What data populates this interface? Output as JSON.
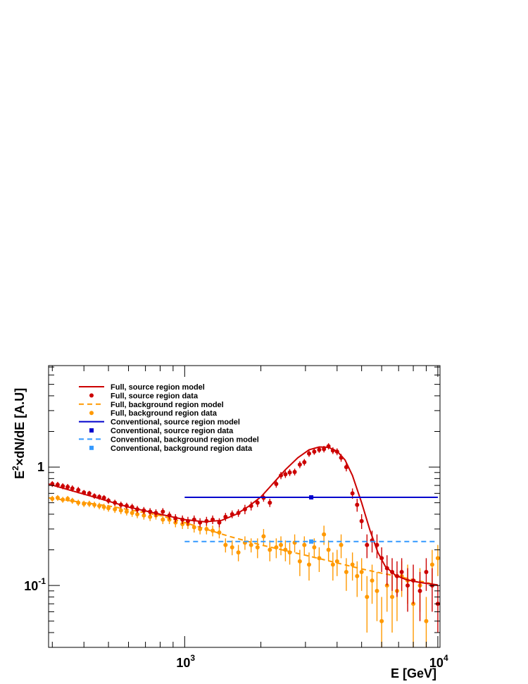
{
  "chart_data": {
    "type": "line",
    "title": "",
    "xlabel": "E [GeV]",
    "ylabel_parts": {
      "e": "E",
      "sup": "2",
      "rest": "×dN/dE [A.U]"
    },
    "xscale": "log",
    "yscale": "log",
    "xlim": [
      290,
      10200
    ],
    "ylim": [
      0.03,
      7.2
    ],
    "grid": false,
    "legend_position": "top-left",
    "x_ticks": [
      {
        "value": 1000,
        "base": "10",
        "exp": "3"
      },
      {
        "value": 10000,
        "base": "10",
        "exp": "4"
      }
    ],
    "y_ticks": [
      {
        "value": 1,
        "label": "1"
      },
      {
        "value": 0.1,
        "base": "10",
        "exp": "-1"
      }
    ],
    "colors": {
      "full_source": "#cc0000",
      "full_background": "#ff9900",
      "conv_source": "#0000cc",
      "conv_background": "#3399ff"
    },
    "series": [
      {
        "name": "Full, source region model",
        "kind": "line",
        "color": "#cc0000",
        "points": [
          [
            290,
            0.72
          ],
          [
            350,
            0.64
          ],
          [
            450,
            0.55
          ],
          [
            600,
            0.46
          ],
          [
            800,
            0.4
          ],
          [
            1000,
            0.36
          ],
          [
            1200,
            0.345
          ],
          [
            1400,
            0.355
          ],
          [
            1600,
            0.4
          ],
          [
            1800,
            0.47
          ],
          [
            2000,
            0.56
          ],
          [
            2200,
            0.7
          ],
          [
            2500,
            0.95
          ],
          [
            2800,
            1.2
          ],
          [
            3100,
            1.4
          ],
          [
            3400,
            1.48
          ],
          [
            3700,
            1.47
          ],
          [
            4000,
            1.36
          ],
          [
            4300,
            1.15
          ],
          [
            4600,
            0.85
          ],
          [
            5000,
            0.5
          ],
          [
            5400,
            0.29
          ],
          [
            5800,
            0.19
          ],
          [
            6200,
            0.145
          ],
          [
            6800,
            0.122
          ],
          [
            7500,
            0.112
          ],
          [
            8500,
            0.106
          ],
          [
            10000,
            0.101
          ]
        ]
      },
      {
        "name": "Full, source region data",
        "kind": "points",
        "marker": "circle",
        "color": "#cc0000",
        "points": [
          [
            300,
            0.72,
            0.04
          ],
          [
            315,
            0.71,
            0.04
          ],
          [
            330,
            0.69,
            0.04
          ],
          [
            345,
            0.68,
            0.04
          ],
          [
            360,
            0.66,
            0.04
          ],
          [
            380,
            0.64,
            0.04
          ],
          [
            400,
            0.61,
            0.03
          ],
          [
            420,
            0.6,
            0.03
          ],
          [
            440,
            0.57,
            0.03
          ],
          [
            460,
            0.56,
            0.03
          ],
          [
            480,
            0.55,
            0.03
          ],
          [
            500,
            0.52,
            0.03
          ],
          [
            530,
            0.5,
            0.03
          ],
          [
            560,
            0.48,
            0.03
          ],
          [
            590,
            0.47,
            0.03
          ],
          [
            620,
            0.46,
            0.03
          ],
          [
            650,
            0.44,
            0.03
          ],
          [
            690,
            0.43,
            0.03
          ],
          [
            730,
            0.42,
            0.03
          ],
          [
            770,
            0.41,
            0.03
          ],
          [
            820,
            0.42,
            0.03
          ],
          [
            870,
            0.39,
            0.03
          ],
          [
            920,
            0.37,
            0.03
          ],
          [
            980,
            0.36,
            0.03
          ],
          [
            1030,
            0.35,
            0.03
          ],
          [
            1090,
            0.36,
            0.03
          ],
          [
            1150,
            0.34,
            0.03
          ],
          [
            1220,
            0.35,
            0.03
          ],
          [
            1290,
            0.36,
            0.03
          ],
          [
            1370,
            0.34,
            0.03
          ],
          [
            1450,
            0.38,
            0.03
          ],
          [
            1540,
            0.4,
            0.03
          ],
          [
            1630,
            0.41,
            0.03
          ],
          [
            1730,
            0.44,
            0.04
          ],
          [
            1830,
            0.47,
            0.04
          ],
          [
            1940,
            0.5,
            0.04
          ],
          [
            2050,
            0.55,
            0.04
          ],
          [
            2170,
            0.5,
            0.04
          ],
          [
            2300,
            0.72,
            0.05
          ],
          [
            2400,
            0.85,
            0.06
          ],
          [
            2500,
            0.87,
            0.06
          ],
          [
            2600,
            0.9,
            0.06
          ],
          [
            2720,
            0.91,
            0.06
          ],
          [
            2850,
            1.05,
            0.07
          ],
          [
            2970,
            1.1,
            0.07
          ],
          [
            3100,
            1.3,
            0.08
          ],
          [
            3250,
            1.35,
            0.08
          ],
          [
            3400,
            1.4,
            0.08
          ],
          [
            3550,
            1.42,
            0.09
          ],
          [
            3700,
            1.5,
            0.09
          ],
          [
            3850,
            1.38,
            0.09
          ],
          [
            4000,
            1.35,
            0.09
          ],
          [
            4150,
            1.2,
            0.09
          ],
          [
            4350,
            1.0,
            0.08
          ],
          [
            4600,
            0.6,
            0.06
          ],
          [
            4800,
            0.48,
            0.06
          ],
          [
            5000,
            0.35,
            0.05
          ],
          [
            5250,
            0.22,
            0.05
          ],
          [
            5500,
            0.24,
            0.05
          ],
          [
            5750,
            0.22,
            0.05
          ],
          [
            6000,
            0.17,
            0.04
          ],
          [
            6300,
            0.14,
            0.04
          ],
          [
            6600,
            0.13,
            0.04
          ],
          [
            6900,
            0.12,
            0.04
          ],
          [
            7200,
            0.13,
            0.04
          ],
          [
            7600,
            0.1,
            0.04
          ],
          [
            8000,
            0.11,
            0.04
          ],
          [
            8500,
            0.09,
            0.04
          ],
          [
            9000,
            0.13,
            0.04
          ],
          [
            9500,
            0.1,
            0.04
          ],
          [
            10000,
            0.07,
            0.03
          ]
        ]
      },
      {
        "name": "Full, background region model",
        "kind": "line",
        "dashed": true,
        "color": "#ff9900",
        "points": [
          [
            290,
            0.55
          ],
          [
            500,
            0.47
          ],
          [
            800,
            0.39
          ],
          [
            1000,
            0.34
          ],
          [
            1500,
            0.26
          ],
          [
            2000,
            0.22
          ],
          [
            3000,
            0.18
          ],
          [
            4000,
            0.155
          ],
          [
            5000,
            0.138
          ],
          [
            6000,
            0.127
          ],
          [
            7000,
            0.119
          ],
          [
            8000,
            0.112
          ],
          [
            9000,
            0.106
          ],
          [
            10000,
            0.1
          ]
        ]
      },
      {
        "name": "Full, background region data",
        "kind": "points",
        "marker": "circle",
        "color": "#ff9900",
        "points": [
          [
            300,
            0.54,
            0.03
          ],
          [
            315,
            0.55,
            0.03
          ],
          [
            330,
            0.53,
            0.03
          ],
          [
            345,
            0.54,
            0.03
          ],
          [
            360,
            0.52,
            0.03
          ],
          [
            380,
            0.5,
            0.03
          ],
          [
            400,
            0.49,
            0.03
          ],
          [
            420,
            0.49,
            0.03
          ],
          [
            440,
            0.48,
            0.03
          ],
          [
            460,
            0.47,
            0.03
          ],
          [
            480,
            0.46,
            0.03
          ],
          [
            500,
            0.45,
            0.03
          ],
          [
            530,
            0.44,
            0.03
          ],
          [
            560,
            0.43,
            0.03
          ],
          [
            590,
            0.42,
            0.03
          ],
          [
            620,
            0.41,
            0.03
          ],
          [
            650,
            0.4,
            0.03
          ],
          [
            690,
            0.39,
            0.03
          ],
          [
            730,
            0.38,
            0.03
          ],
          [
            770,
            0.39,
            0.03
          ],
          [
            820,
            0.36,
            0.03
          ],
          [
            870,
            0.36,
            0.03
          ],
          [
            920,
            0.34,
            0.03
          ],
          [
            980,
            0.33,
            0.03
          ],
          [
            1030,
            0.33,
            0.03
          ],
          [
            1090,
            0.31,
            0.03
          ],
          [
            1150,
            0.3,
            0.03
          ],
          [
            1220,
            0.3,
            0.03
          ],
          [
            1290,
            0.29,
            0.03
          ],
          [
            1370,
            0.28,
            0.03
          ],
          [
            1450,
            0.22,
            0.03
          ],
          [
            1540,
            0.21,
            0.03
          ],
          [
            1630,
            0.19,
            0.03
          ],
          [
            1730,
            0.23,
            0.03
          ],
          [
            1830,
            0.22,
            0.03
          ],
          [
            1940,
            0.21,
            0.04
          ],
          [
            2050,
            0.26,
            0.04
          ],
          [
            2170,
            0.2,
            0.04
          ],
          [
            2300,
            0.21,
            0.04
          ],
          [
            2400,
            0.22,
            0.04
          ],
          [
            2500,
            0.2,
            0.04
          ],
          [
            2600,
            0.19,
            0.04
          ],
          [
            2720,
            0.23,
            0.04
          ],
          [
            2850,
            0.16,
            0.04
          ],
          [
            2970,
            0.22,
            0.04
          ],
          [
            3100,
            0.15,
            0.04
          ],
          [
            3250,
            0.21,
            0.04
          ],
          [
            3400,
            0.17,
            0.04
          ],
          [
            3550,
            0.27,
            0.05
          ],
          [
            3700,
            0.2,
            0.04
          ],
          [
            3850,
            0.15,
            0.04
          ],
          [
            4000,
            0.16,
            0.04
          ],
          [
            4150,
            0.22,
            0.05
          ],
          [
            4350,
            0.13,
            0.04
          ],
          [
            4600,
            0.15,
            0.04
          ],
          [
            4800,
            0.12,
            0.04
          ],
          [
            5000,
            0.13,
            0.04
          ],
          [
            5250,
            0.08,
            0.04
          ],
          [
            5500,
            0.11,
            0.04
          ],
          [
            5750,
            0.09,
            0.04
          ],
          [
            6000,
            0.05,
            0.03
          ],
          [
            6300,
            0.1,
            0.04
          ],
          [
            6600,
            0.08,
            0.04
          ],
          [
            6900,
            0.09,
            0.04
          ],
          [
            7200,
            0.12,
            0.04
          ],
          [
            7600,
            0.11,
            0.04
          ],
          [
            8000,
            0.07,
            0.04
          ],
          [
            8500,
            0.1,
            0.04
          ],
          [
            9000,
            0.05,
            0.03
          ],
          [
            9500,
            0.15,
            0.05
          ],
          [
            10000,
            0.17,
            0.05
          ]
        ]
      },
      {
        "name": "Conventional, source region model",
        "kind": "hline",
        "color": "#0000cc",
        "value": 0.555,
        "x_range": [
          1000,
          10000
        ]
      },
      {
        "name": "Conventional, source region data",
        "kind": "points",
        "marker": "square",
        "color": "#0000cc",
        "points": [
          [
            3162,
            0.555,
            0
          ]
        ]
      },
      {
        "name": "Conventional, background region model",
        "kind": "hline",
        "dashed": true,
        "color": "#3399ff",
        "value": 0.235,
        "x_range": [
          1000,
          10000
        ]
      },
      {
        "name": "Conventional, background region data",
        "kind": "points",
        "marker": "square",
        "color": "#3399ff",
        "points": [
          [
            3162,
            0.235,
            0
          ]
        ]
      }
    ]
  }
}
